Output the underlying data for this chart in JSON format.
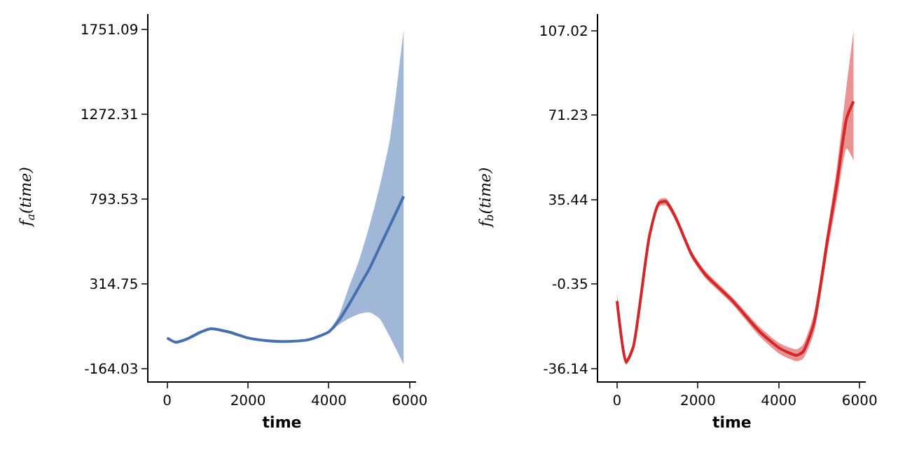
{
  "chart_data": [
    {
      "type": "line",
      "xlabel": "time",
      "ylabel": "f$_{a}$(time)",
      "grid": false,
      "x": [
        0,
        200,
        500,
        800,
        1075,
        1500,
        2000,
        2500,
        2900,
        3500,
        4000,
        4250,
        4500,
        4750,
        5000,
        5250,
        5500,
        5850
      ],
      "xlim": [
        -470,
        6150
      ],
      "xticks": [
        0,
        2000,
        4000,
        6000
      ],
      "ylim": [
        -235,
        1840
      ],
      "yticks": [
        -164.03,
        314.75,
        793.53,
        1272.31,
        1751.09
      ],
      "series": [
        {
          "color": "#4470b0",
          "values": [
            10,
            -14,
            5,
            40,
            62,
            45,
            10,
            -6,
            -10,
            0,
            45,
            110,
            200,
            300,
            400,
            520,
            640,
            810
          ],
          "lower": [
            5,
            -19,
            0,
            35,
            57,
            40,
            5,
            -11,
            -15,
            -5,
            40,
            85,
            120,
            145,
            155,
            120,
            20,
            -140
          ],
          "upper": [
            15,
            -9,
            10,
            45,
            67,
            50,
            15,
            -1,
            -5,
            5,
            50,
            140,
            300,
            450,
            640,
            860,
            1120,
            1751
          ]
        }
      ]
    },
    {
      "type": "line",
      "xlabel": "time",
      "ylabel": "f$_{b}$(time)",
      "grid": false,
      "x": [
        0,
        225,
        400,
        800,
        1040,
        1210,
        1445,
        1850,
        2180,
        2860,
        3530,
        4030,
        4440,
        4600,
        4870,
        5210,
        5445,
        5680,
        5850
      ],
      "xlim": [
        -470,
        6150
      ],
      "xticks": [
        0,
        2000,
        4000,
        6000
      ],
      "ylim": [
        -41.5,
        114
      ],
      "yticks": [
        -36.14,
        -0.35,
        35.44,
        71.23,
        107.02
      ],
      "series": [
        {
          "color": "#d62728",
          "values": [
            -7.5,
            -33.4,
            -27,
            20,
            34,
            34.6,
            28,
            12,
            3.8,
            -7.5,
            -20.5,
            -27.6,
            -30.5,
            -29,
            -17,
            19,
            43,
            70,
            77
          ],
          "lower": [
            -10,
            -34.5,
            -28.5,
            18.5,
            32.5,
            33,
            26.5,
            10.5,
            2.3,
            -9,
            -22.5,
            -30,
            -33,
            -32,
            -21,
            14,
            36,
            57,
            52
          ],
          "upper": [
            -4,
            -32,
            -25.5,
            21.5,
            35.5,
            36,
            29.5,
            13.5,
            5.3,
            -6,
            -18.5,
            -25.5,
            -28,
            -26,
            -13,
            23,
            50,
            84,
            107
          ]
        }
      ]
    }
  ]
}
